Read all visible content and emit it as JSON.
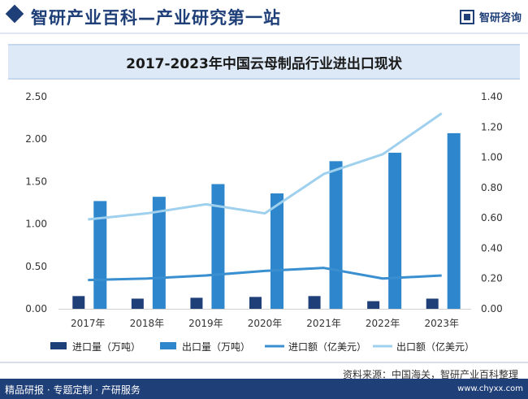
{
  "header": {
    "title": "智研产业百科—产业研究第一站",
    "logo_text": "智研咨询"
  },
  "colors": {
    "brand": "#1f3f78",
    "import_volume": "#1f3f78",
    "export_volume": "#2e86cc",
    "import_value": "#3a8fd0",
    "export_value": "#9fd0ee"
  },
  "chart_data": {
    "type": "bar",
    "title": "2017-2023年中国云母制品行业进出口现状",
    "categories": [
      "2017年",
      "2018年",
      "2019年",
      "2020年",
      "2021年",
      "2022年",
      "2023年"
    ],
    "series": [
      {
        "name": "进口量（万吨）",
        "type": "bar",
        "axis": "left",
        "values": [
          0.15,
          0.12,
          0.13,
          0.14,
          0.15,
          0.09,
          0.12
        ]
      },
      {
        "name": "出口量（万吨）",
        "type": "bar",
        "axis": "left",
        "values": [
          1.27,
          1.32,
          1.47,
          1.36,
          1.74,
          1.84,
          2.07
        ]
      },
      {
        "name": "进口额（亿美元）",
        "type": "line",
        "axis": "right",
        "values": [
          0.19,
          0.2,
          0.22,
          0.25,
          0.27,
          0.2,
          0.22
        ]
      },
      {
        "name": "出口额（亿美元）",
        "type": "line",
        "axis": "right",
        "values": [
          0.59,
          0.63,
          0.69,
          0.63,
          0.89,
          1.02,
          1.29
        ]
      }
    ],
    "y_left": {
      "min": 0,
      "max": 2.5,
      "ticks": [
        "0.00",
        "0.50",
        "1.00",
        "1.50",
        "2.00",
        "2.50"
      ]
    },
    "y_right": {
      "min": 0,
      "max": 1.4,
      "ticks": [
        "0.00",
        "0.20",
        "0.40",
        "0.60",
        "0.80",
        "1.00",
        "1.20",
        "1.40"
      ]
    },
    "grid": false,
    "legend_position": "bottom"
  },
  "footer": {
    "source": "资料来源：中国海关，智研产业百科整理",
    "tagline": "精品研报 · 专题定制 · 产研服务",
    "url": "www.chyxx.com"
  }
}
